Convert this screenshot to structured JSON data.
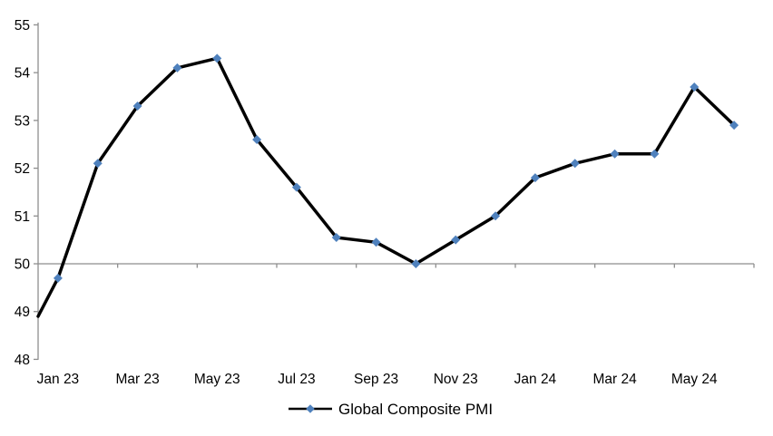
{
  "chart_data": {
    "type": "line",
    "title": "",
    "categories": [
      "Jan 23",
      "Feb 23",
      "Mar 23",
      "Apr 23",
      "May 23",
      "Jun 23",
      "Jul 23",
      "Aug 23",
      "Sep 23",
      "Oct 23",
      "Nov 23",
      "Dec 23",
      "Jan 24",
      "Feb 24",
      "Mar 24",
      "Apr 24",
      "May 24",
      "Jun 24"
    ],
    "series": [
      {
        "name": "Global Composite PMI",
        "values": [
          49.7,
          52.1,
          53.3,
          54.1,
          54.3,
          52.6,
          51.6,
          50.55,
          50.45,
          50.0,
          50.5,
          51.0,
          51.8,
          52.1,
          52.3,
          52.3,
          53.7,
          52.9
        ]
      }
    ],
    "line_enters_plot_at_left_edge_value": 48.9,
    "x_tick_labels": [
      "Jan 23",
      "Mar 23",
      "May 23",
      "Jul 23",
      "Sep 23",
      "Nov 23",
      "Jan 24",
      "Mar 24",
      "May 24"
    ],
    "x_label_interval": 2,
    "ylim": [
      48,
      55
    ],
    "y_tick_step": 1,
    "y_tick_labels": [
      "48",
      "49",
      "50",
      "51",
      "52",
      "53",
      "54",
      "55"
    ],
    "x_axis_crosses_at": 50,
    "grid": "off",
    "legend_position": "bottom-center",
    "xlabel": "",
    "ylabel": "",
    "colors": {
      "line": "#000000",
      "marker": "#4F81BD",
      "axis": "#8E8E8E",
      "text": "#000000",
      "background": "#FFFFFF"
    }
  },
  "legend": {
    "label": "Global Composite PMI"
  }
}
